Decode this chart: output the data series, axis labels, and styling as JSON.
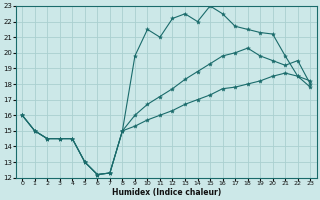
{
  "xlabel": "Humidex (Indice chaleur)",
  "xlim": [
    -0.5,
    23.5
  ],
  "ylim": [
    12,
    23
  ],
  "xticks": [
    0,
    1,
    2,
    3,
    4,
    5,
    6,
    7,
    8,
    9,
    10,
    11,
    12,
    13,
    14,
    15,
    16,
    17,
    18,
    19,
    20,
    21,
    22,
    23
  ],
  "yticks": [
    12,
    13,
    14,
    15,
    16,
    17,
    18,
    19,
    20,
    21,
    22,
    23
  ],
  "background_color": "#cce8e8",
  "grid_color": "#aad0d0",
  "line_color": "#1a6b6b",
  "line1_x": [
    0,
    1,
    2,
    3,
    4,
    5,
    6,
    7,
    8,
    9,
    10,
    11,
    12,
    13,
    14,
    15,
    16,
    17,
    18,
    19,
    20,
    21,
    22,
    23
  ],
  "line1_y": [
    16,
    15,
    14.5,
    14.5,
    14.5,
    13.0,
    12.2,
    12.3,
    15.0,
    19.8,
    21.5,
    21.0,
    22.2,
    22.5,
    22.0,
    23.0,
    22.5,
    21.7,
    21.5,
    21.3,
    21.2,
    19.8,
    18.5,
    18.2
  ],
  "line2_x": [
    0,
    1,
    2,
    3,
    4,
    5,
    6,
    7,
    8,
    9,
    10,
    11,
    12,
    13,
    14,
    15,
    16,
    17,
    18,
    19,
    20,
    21,
    22,
    23
  ],
  "line2_y": [
    16,
    15,
    14.5,
    14.5,
    14.5,
    13.0,
    12.2,
    12.3,
    15.0,
    16.0,
    16.7,
    17.2,
    17.7,
    18.3,
    18.8,
    19.3,
    19.8,
    20.0,
    20.3,
    19.8,
    19.5,
    19.2,
    19.5,
    18.0
  ],
  "line3_x": [
    0,
    1,
    2,
    3,
    4,
    5,
    6,
    7,
    8,
    9,
    10,
    11,
    12,
    13,
    14,
    15,
    16,
    17,
    18,
    19,
    20,
    21,
    22,
    23
  ],
  "line3_y": [
    16,
    15,
    14.5,
    14.5,
    14.5,
    13.0,
    12.2,
    12.3,
    15.0,
    15.3,
    15.7,
    16.0,
    16.3,
    16.7,
    17.0,
    17.3,
    17.7,
    17.8,
    18.0,
    18.2,
    18.5,
    18.7,
    18.5,
    17.8
  ]
}
